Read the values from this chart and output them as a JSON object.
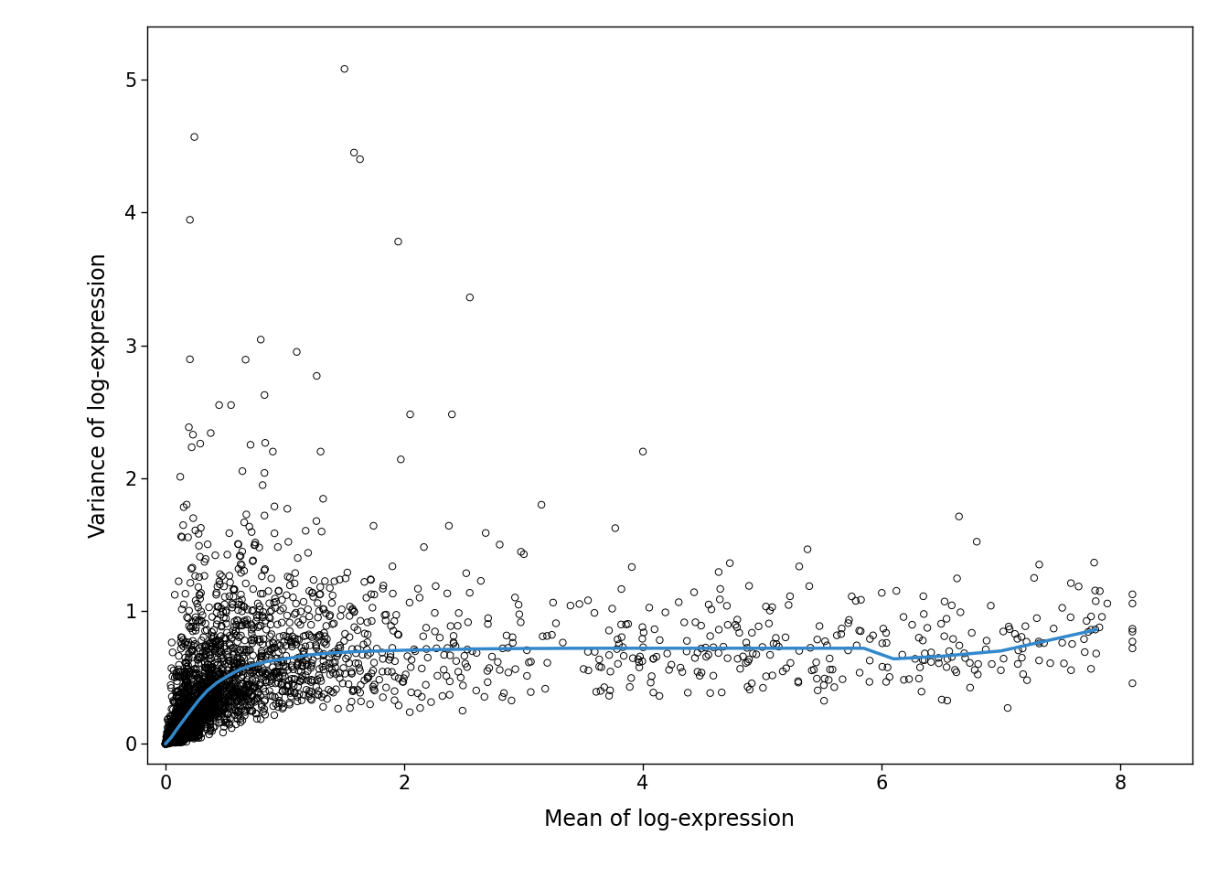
{
  "xlabel": "Mean of log-expression",
  "ylabel": "Variance of log-expression",
  "xlim": [
    -0.15,
    8.6
  ],
  "ylim": [
    -0.15,
    5.4
  ],
  "xticks": [
    0,
    2,
    4,
    6,
    8
  ],
  "yticks": [
    0,
    1,
    2,
    3,
    4,
    5
  ],
  "scatter_edgecolor": "black",
  "scatter_facecolor": "none",
  "scatter_size": 28,
  "scatter_linewidth": 0.7,
  "trend_color": "#3388cc",
  "trend_linewidth": 2.5,
  "background_color": "white",
  "xlabel_fontsize": 17,
  "ylabel_fontsize": 17,
  "tick_fontsize": 15,
  "seed": 42,
  "trend_x": [
    0.0,
    0.02,
    0.05,
    0.08,
    0.12,
    0.17,
    0.22,
    0.28,
    0.35,
    0.43,
    0.52,
    0.62,
    0.72,
    0.85,
    1.0,
    1.2,
    1.4,
    1.6,
    1.8,
    2.0,
    2.3,
    2.6,
    3.0,
    3.5,
    4.0,
    4.5,
    5.0,
    5.5,
    5.85,
    6.1,
    6.5,
    7.0,
    7.8
  ],
  "trend_y": [
    0.0,
    0.02,
    0.05,
    0.09,
    0.14,
    0.2,
    0.26,
    0.33,
    0.4,
    0.46,
    0.51,
    0.56,
    0.59,
    0.62,
    0.64,
    0.67,
    0.685,
    0.695,
    0.7,
    0.705,
    0.71,
    0.715,
    0.718,
    0.72,
    0.72,
    0.72,
    0.72,
    0.72,
    0.72,
    0.64,
    0.66,
    0.7,
    0.86
  ]
}
